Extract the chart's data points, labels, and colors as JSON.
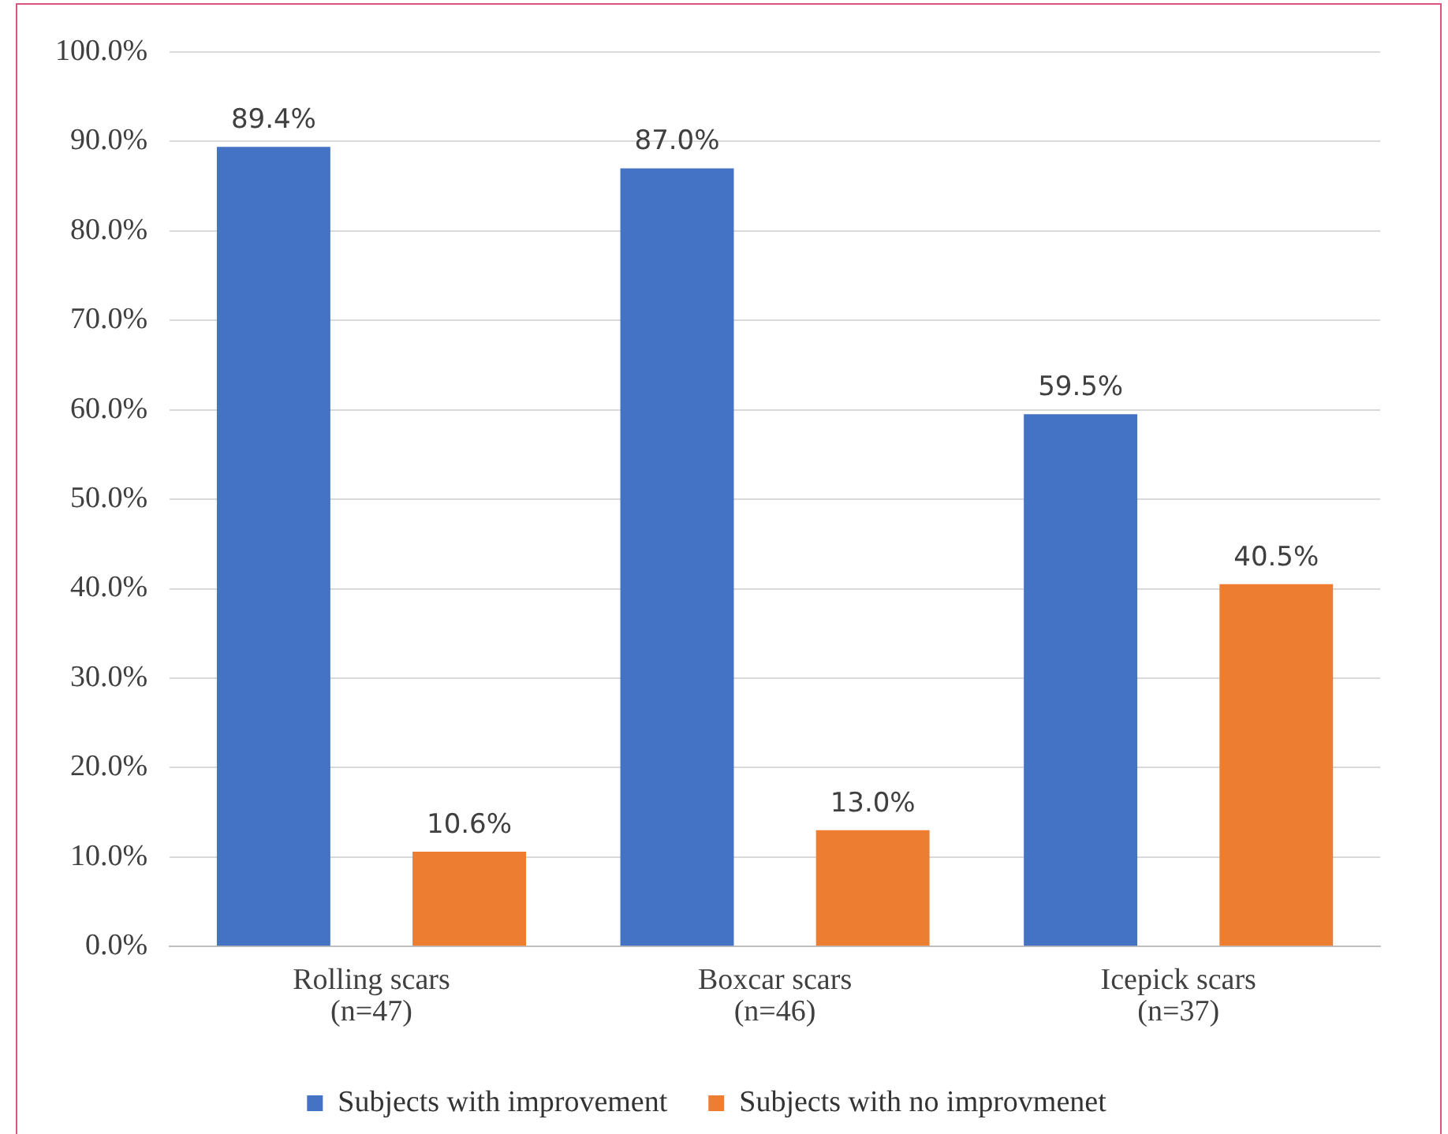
{
  "chart_data": {
    "type": "bar",
    "categories": [
      "Rolling scars\n(n=47)",
      "Boxcar scars\n(n=46)",
      "Icepick scars\n(n=37)"
    ],
    "series": [
      {
        "name": "Subjects with improvement",
        "color": "#4472c4",
        "values": [
          89.4,
          87.0,
          59.5
        ],
        "value_labels": [
          "89.4%",
          "87.0%",
          "59.5%"
        ]
      },
      {
        "name": "Subjects with no improvmenet",
        "color": "#ed7d31",
        "values": [
          10.6,
          13.0,
          40.5
        ],
        "value_labels": [
          "10.6%",
          "13.0%",
          "40.5%"
        ]
      }
    ],
    "ylim": [
      0,
      100
    ],
    "yticks": [
      {
        "value": 0,
        "label": "0.0%"
      },
      {
        "value": 10,
        "label": "10.0%"
      },
      {
        "value": 20,
        "label": "20.0%"
      },
      {
        "value": 30,
        "label": "30.0%"
      },
      {
        "value": 40,
        "label": "40.0%"
      },
      {
        "value": 50,
        "label": "50.0%"
      },
      {
        "value": 60,
        "label": "60.0%"
      },
      {
        "value": 70,
        "label": "70.0%"
      },
      {
        "value": 80,
        "label": "80.0%"
      },
      {
        "value": 90,
        "label": "90.0%"
      },
      {
        "value": 100,
        "label": "100.0%"
      }
    ],
    "grid": "y",
    "legend": "bottom"
  }
}
